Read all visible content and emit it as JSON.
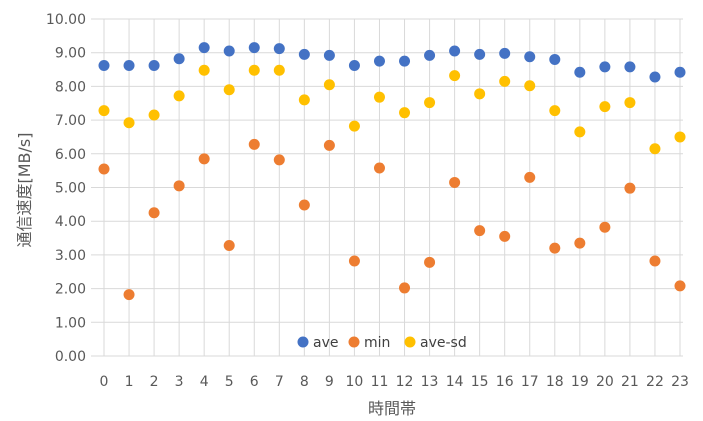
{
  "chart_data": {
    "type": "scatter",
    "xlabel": "時間帯",
    "ylabel": "通信速度[MB/s]",
    "xlim": [
      0,
      23
    ],
    "ylim": [
      0,
      10
    ],
    "x_ticks": [
      "0",
      "1",
      "2",
      "3",
      "4",
      "5",
      "6",
      "7",
      "8",
      "9",
      "10",
      "11",
      "12",
      "13",
      "14",
      "15",
      "16",
      "17",
      "18",
      "19",
      "20",
      "21",
      "22",
      "23"
    ],
    "y_ticks": [
      "0.00",
      "1.00",
      "2.00",
      "3.00",
      "4.00",
      "5.00",
      "6.00",
      "7.00",
      "8.00",
      "9.00",
      "10.00"
    ],
    "grid": true,
    "legend_position": "bottom-inside",
    "x": [
      0,
      1,
      2,
      3,
      4,
      5,
      6,
      7,
      8,
      9,
      10,
      11,
      12,
      13,
      14,
      15,
      16,
      17,
      18,
      19,
      20,
      21,
      22,
      23
    ],
    "series": [
      {
        "name": "ave",
        "color": "#4472c4",
        "values": [
          8.62,
          8.62,
          8.62,
          8.82,
          9.15,
          9.05,
          9.15,
          9.12,
          8.95,
          8.92,
          8.62,
          8.75,
          8.75,
          8.92,
          9.05,
          8.95,
          8.98,
          8.88,
          8.8,
          8.42,
          8.58,
          8.58,
          8.28,
          8.42
        ]
      },
      {
        "name": "min",
        "color": "#ed7d31",
        "values": [
          5.55,
          1.82,
          4.25,
          5.05,
          5.85,
          3.28,
          6.28,
          5.82,
          4.48,
          6.25,
          2.82,
          5.58,
          2.02,
          2.78,
          5.15,
          3.72,
          3.55,
          5.3,
          3.2,
          3.35,
          3.82,
          4.98,
          2.82,
          2.08
        ]
      },
      {
        "name": "ave-sd",
        "color": "#ffc000",
        "values": [
          7.28,
          6.92,
          7.15,
          7.72,
          8.48,
          7.9,
          8.48,
          8.48,
          7.6,
          8.05,
          6.82,
          7.68,
          7.22,
          7.52,
          8.32,
          7.78,
          8.15,
          8.02,
          7.28,
          6.65,
          7.4,
          7.52,
          6.15,
          6.5
        ]
      }
    ]
  }
}
